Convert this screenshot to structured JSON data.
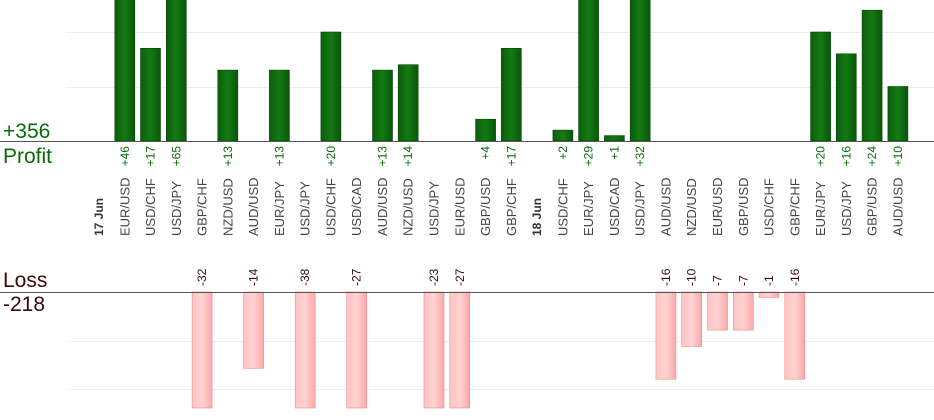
{
  "summary": {
    "profit_total": "+356",
    "profit_label": "Profit",
    "loss_label": "Loss",
    "loss_total": "-218"
  },
  "colors": {
    "profit_bar": "#0d6b0d",
    "profit_bar_dark": "#064706",
    "profit_text": "#0a6a0a",
    "loss_bar": "#ffb8b8",
    "loss_bar_edge": "#f08a8a",
    "loss_text": "#3a0a0a",
    "gridline": "#eeeeee",
    "axis": "#555555",
    "category_text": "#444444"
  },
  "chart_data": {
    "type": "bar",
    "columns": [
      {
        "label": "17 Jun",
        "is_date": true
      },
      {
        "label": "EUR/USD",
        "value": 46,
        "value_label": "+46"
      },
      {
        "label": "USD/CHF",
        "value": 17,
        "value_label": "+17"
      },
      {
        "label": "USD/JPY",
        "value": 65,
        "value_label": "+65"
      },
      {
        "label": "GBP/CHF",
        "value": -32,
        "value_label": "-32"
      },
      {
        "label": "NZD/USD",
        "value": 13,
        "value_label": "+13"
      },
      {
        "label": "AUD/USD",
        "value": -14,
        "value_label": "-14"
      },
      {
        "label": "EUR/JPY",
        "value": 13,
        "value_label": "+13"
      },
      {
        "label": "USD/JPY",
        "value": -38,
        "value_label": "-38"
      },
      {
        "label": "USD/CHF",
        "value": 20,
        "value_label": "+20"
      },
      {
        "label": "USD/CAD",
        "value": -27,
        "value_label": "-27"
      },
      {
        "label": "AUD/USD",
        "value": 13,
        "value_label": "+13"
      },
      {
        "label": "NZD/USD",
        "value": 14,
        "value_label": "+14"
      },
      {
        "label": "USD/JPY",
        "value": -23,
        "value_label": "-23"
      },
      {
        "label": "EUR/USD",
        "value": -27,
        "value_label": "-27"
      },
      {
        "label": "GBP/USD",
        "value": 4,
        "value_label": "+4"
      },
      {
        "label": "GBP/CHF",
        "value": 17,
        "value_label": "+17"
      },
      {
        "label": "18 Jun",
        "is_date": true
      },
      {
        "label": "USD/CHF",
        "value": 2,
        "value_label": "+2"
      },
      {
        "label": "EUR/JPY",
        "value": 29,
        "value_label": "+29"
      },
      {
        "label": "USD/CAD",
        "value": 1,
        "value_label": "+1"
      },
      {
        "label": "USD/JPY",
        "value": 32,
        "value_label": "+32"
      },
      {
        "label": "AUD/USD",
        "value": -16,
        "value_label": "-16"
      },
      {
        "label": "NZD/USD",
        "value": -10,
        "value_label": "-10"
      },
      {
        "label": "EUR/USD",
        "value": -7,
        "value_label": "-7"
      },
      {
        "label": "GBP/USD",
        "value": -7,
        "value_label": "-7"
      },
      {
        "label": "USD/CHF",
        "value": -1,
        "value_label": "-1"
      },
      {
        "label": "GBP/CHF",
        "value": -16,
        "value_label": "-16"
      },
      {
        "label": "EUR/JPY",
        "value": 20,
        "value_label": "+20"
      },
      {
        "label": "USD/JPY",
        "value": 16,
        "value_label": "+16"
      },
      {
        "label": "GBP/USD",
        "value": 24,
        "value_label": "+24"
      },
      {
        "label": "AUD/USD",
        "value": 10,
        "value_label": "+10"
      }
    ],
    "profit_axis_visible_max": 26,
    "loss_axis_visible_min": -26,
    "grid": true
  }
}
